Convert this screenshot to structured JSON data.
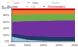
{
  "chart_data": {
    "type": "area",
    "stacked": true,
    "categories": [
      "2000",
      "2005",
      "2010",
      "2015",
      "2020"
    ],
    "series": [
      {
        "name": "Hydro",
        "color": "#9dc3e6",
        "values": [
          15,
          5,
          3,
          2,
          2
        ]
      },
      {
        "name": "Nuclear",
        "color": "#203864",
        "values": [
          10,
          12,
          12,
          12,
          12
        ]
      },
      {
        "name": "Gas",
        "color": "#7030a0",
        "values": [
          35,
          45,
          48,
          50,
          50
        ]
      },
      {
        "name": "Oil",
        "color": "#70ad47",
        "values": [
          20,
          20,
          20,
          19,
          19
        ]
      },
      {
        "name": "Coal",
        "color": "#ed7d31",
        "values": [
          15,
          13,
          12,
          12,
          12
        ]
      },
      {
        "name": "Renewables",
        "color": "#c00000",
        "values": [
          5,
          5,
          5,
          5,
          5
        ]
      }
    ],
    "ylim": [
      0,
      100
    ],
    "yticks": [
      {
        "value": 0,
        "label": "0%"
      },
      {
        "value": 20,
        "label": "20%"
      },
      {
        "value": 40,
        "label": "40%"
      },
      {
        "value": 60,
        "label": "60%"
      },
      {
        "value": 80,
        "label": "80%"
      },
      {
        "value": 100,
        "label": "100%"
      }
    ],
    "grid": false,
    "legend": "top"
  }
}
